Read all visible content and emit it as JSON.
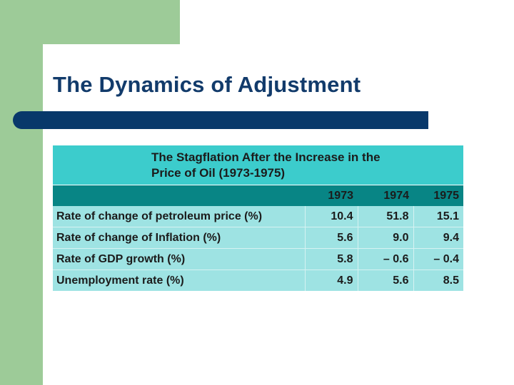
{
  "slide": {
    "title": "The Dynamics of Adjustment"
  },
  "table": {
    "caption": "The Stagflation After the Increase in the\nPrice of Oil (1973-1975)",
    "columns": [
      "",
      "1973",
      "1974",
      "1975"
    ],
    "rows": [
      {
        "label": "Rate of change of petroleum price (%)",
        "values": [
          "10.4",
          "51.8",
          "15.1"
        ]
      },
      {
        "label": "Rate of change of Inflation (%)",
        "values": [
          "5.6",
          "9.0",
          "9.4"
        ]
      },
      {
        "label": "Rate of GDP growth (%)",
        "values": [
          "5.8",
          "– 0.6",
          "– 0.4"
        ]
      },
      {
        "label": "Unemployment rate (%)",
        "values": [
          "4.9",
          "5.6",
          "8.5"
        ]
      }
    ]
  },
  "colors": {
    "green_accent": "#9dcb98",
    "title_text": "#123b6b",
    "title_bar": "#08386a",
    "caption_bg": "#3ccccc",
    "header_bg": "#088585",
    "row_bg": "#9ee3e3"
  }
}
